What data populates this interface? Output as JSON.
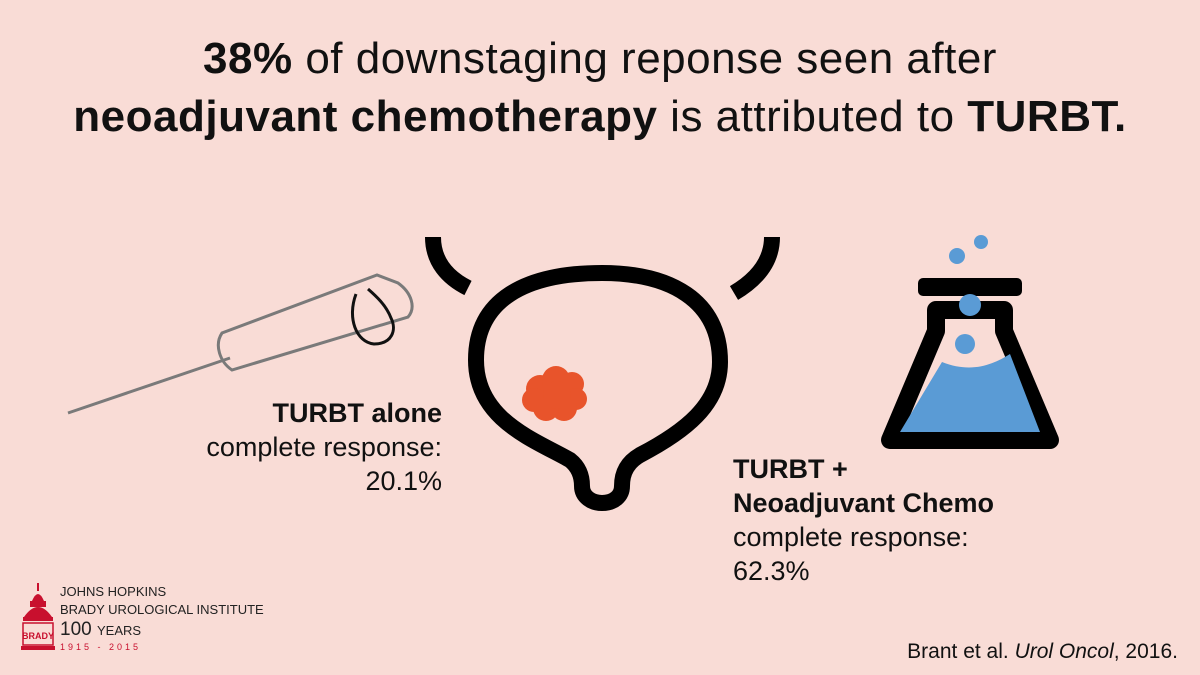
{
  "headline": {
    "line1_bold": "38%",
    "line1_rest": " of downstaging reponse seen after",
    "line2_bold": "neoadjuvant chemotherapy",
    "line2_mid": " is attributed to ",
    "line2_bold2": "TURBT."
  },
  "turbt_alone": {
    "title": "TURBT alone",
    "label": "complete response:",
    "value": "20.1%"
  },
  "turbt_chemo": {
    "title1": "TURBT +",
    "title2": "Neoadjuvant Chemo",
    "label": "complete response:",
    "value": "62.3%"
  },
  "citation": {
    "authors": "Brant et al. ",
    "journal": "Urol Oncol",
    "year": ", 2016."
  },
  "logo": {
    "line1": "JOHNS HOPKINS",
    "line2": "BRADY UROLOGICAL INSTITUTE",
    "line3": "100",
    "line3b": "YEARS",
    "line4": "1915 - 2015",
    "emblem_text": "BRADY"
  },
  "colors": {
    "background": "#f9dcd6",
    "tumor": "#e8542b",
    "flask_liquid": "#5a9bd5",
    "logo_red": "#c8102e",
    "outline": "#000000"
  },
  "icons": [
    "resectoscope-icon",
    "bladder-icon",
    "tumor-icon",
    "flask-icon"
  ]
}
